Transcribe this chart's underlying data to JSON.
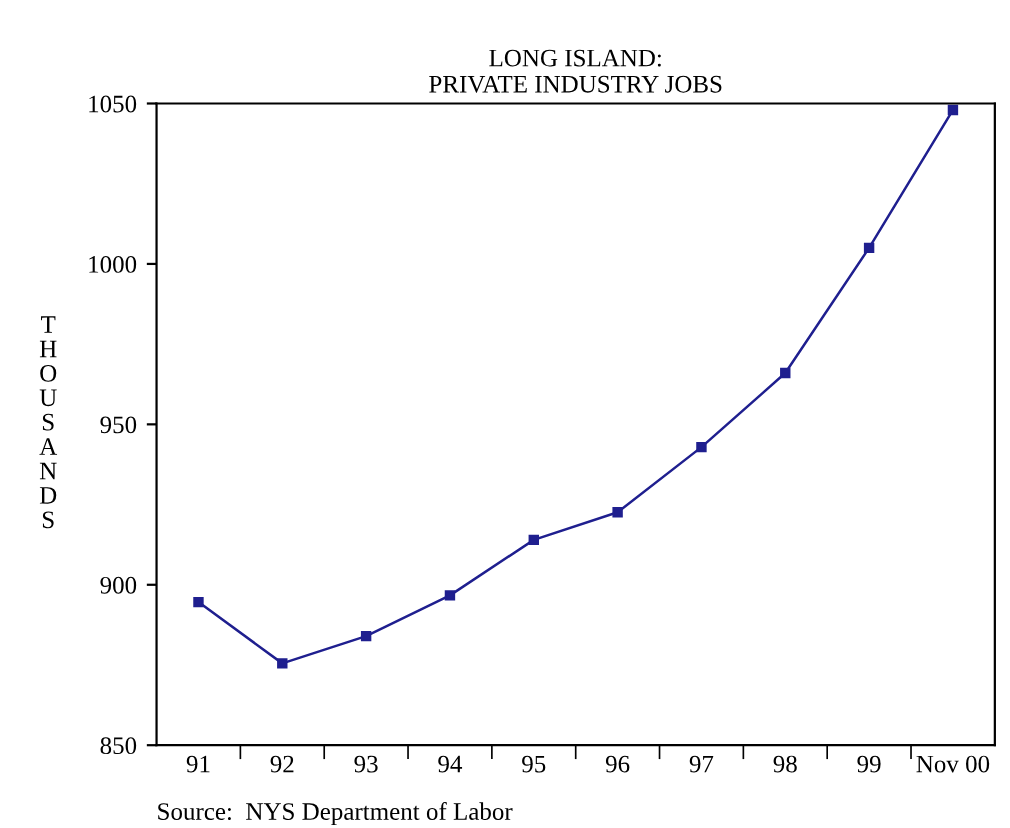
{
  "chart_data": {
    "type": "line",
    "title": "LONG ISLAND:\nPRIVATE INDUSTRY JOBS",
    "ylabel": "THOUSANDS",
    "categories": [
      "91",
      "92",
      "93",
      "94",
      "95",
      "96",
      "97",
      "98",
      "99",
      "Nov 00"
    ],
    "series": [
      {
        "color": "#1f1f8f",
        "values": [
          894.6,
          875.5,
          884,
          896.7,
          914,
          922.6,
          942.9,
          966,
          1005,
          1048
        ]
      }
    ],
    "ylim": [
      850,
      1050
    ],
    "yticks": [
      850,
      900,
      950,
      1000,
      1050
    ],
    "grid": false,
    "legend": false,
    "marker": "square",
    "line_style": "solid",
    "annotations": [
      "Source:  NYS Department of Labor"
    ]
  }
}
